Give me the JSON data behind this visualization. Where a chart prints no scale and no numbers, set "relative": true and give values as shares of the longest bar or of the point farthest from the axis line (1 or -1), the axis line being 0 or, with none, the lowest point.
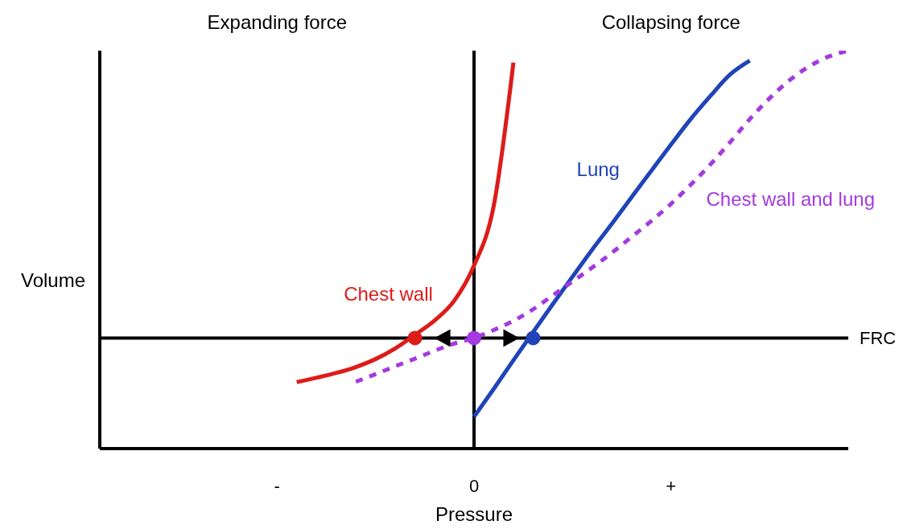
{
  "chart_data": {
    "type": "line",
    "relative": true,
    "xlabel": "Pressure",
    "ylabel": "Volume",
    "categories": [
      null,
      null,
      null,
      null,
      null,
      null,
      null,
      null,
      null,
      "-",
      null,
      null,
      null,
      null,
      null,
      null,
      null,
      null,
      null,
      "0",
      null,
      null,
      null,
      null,
      null,
      null,
      null,
      null,
      null,
      "+",
      null,
      null,
      null,
      null,
      null,
      null,
      null,
      null,
      null
    ],
    "annotations": [
      "Expanding force",
      "Collapsing force"
    ],
    "ref_lines": [
      {
        "axis": "y",
        "value": 0.278,
        "label": "FRC",
        "color": "#000000"
      },
      {
        "axis": "x",
        "value": "0",
        "label": null,
        "color": "#000000"
      }
    ],
    "series": [
      {
        "name": "Chest wall",
        "color": "#dd1c1a",
        "line_style": "solid",
        "values": [
          null,
          null,
          null,
          null,
          null,
          null,
          null,
          null,
          null,
          null,
          0.167,
          0.178,
          0.19,
          0.205,
          0.225,
          0.252,
          0.286,
          0.322,
          0.372,
          0.46,
          0.61,
          0.97,
          null,
          null,
          null,
          null,
          null,
          null,
          null,
          null,
          null,
          null,
          null,
          null,
          null,
          null,
          null,
          null,
          null
        ]
      },
      {
        "name": "Lung",
        "color": "#1f44b8",
        "line_style": "solid",
        "values": [
          null,
          null,
          null,
          null,
          null,
          null,
          null,
          null,
          null,
          null,
          null,
          null,
          null,
          null,
          null,
          null,
          null,
          null,
          null,
          0.08,
          0.15,
          0.222,
          0.293,
          0.363,
          0.432,
          0.5,
          0.565,
          0.632,
          0.698,
          0.764,
          0.828,
          0.886,
          0.94,
          0.975,
          null,
          null,
          null,
          null,
          null
        ]
      },
      {
        "name": "Chest wall and lung",
        "color": "#a43ae0",
        "line_style": "dotted",
        "values": [
          null,
          null,
          null,
          null,
          null,
          null,
          null,
          null,
          null,
          null,
          null,
          null,
          null,
          0.168,
          0.187,
          0.207,
          0.226,
          0.246,
          0.264,
          0.278,
          0.298,
          0.321,
          0.35,
          0.385,
          0.42,
          0.455,
          0.492,
          0.532,
          0.572,
          0.615,
          0.663,
          0.714,
          0.77,
          0.828,
          0.88,
          0.925,
          0.96,
          0.985,
          1.0
        ]
      },
      {
        "type": "scatter",
        "marker": "circle",
        "color": "#dd1c1a",
        "values": [
          null,
          null,
          null,
          null,
          null,
          null,
          null,
          null,
          null,
          null,
          null,
          null,
          null,
          null,
          null,
          null,
          0.278,
          null,
          null,
          null,
          null,
          null,
          null,
          null,
          null,
          null,
          null,
          null,
          null,
          null,
          null,
          null,
          null,
          null,
          null,
          null,
          null,
          null,
          null
        ]
      },
      {
        "type": "scatter",
        "marker": "circle",
        "color": "#a43ae0",
        "values": [
          null,
          null,
          null,
          null,
          null,
          null,
          null,
          null,
          null,
          null,
          null,
          null,
          null,
          null,
          null,
          null,
          null,
          null,
          null,
          0.278,
          null,
          null,
          null,
          null,
          null,
          null,
          null,
          null,
          null,
          null,
          null,
          null,
          null,
          null,
          null,
          null,
          null,
          null,
          null
        ]
      },
      {
        "type": "scatter",
        "marker": "circle",
        "color": "#1f44b8",
        "values": [
          null,
          null,
          null,
          null,
          null,
          null,
          null,
          null,
          null,
          null,
          null,
          null,
          null,
          null,
          null,
          null,
          null,
          null,
          null,
          null,
          null,
          null,
          0.278,
          null,
          null,
          null,
          null,
          null,
          null,
          null,
          null,
          null,
          null,
          null,
          null,
          null,
          null,
          null,
          null
        ]
      }
    ]
  }
}
